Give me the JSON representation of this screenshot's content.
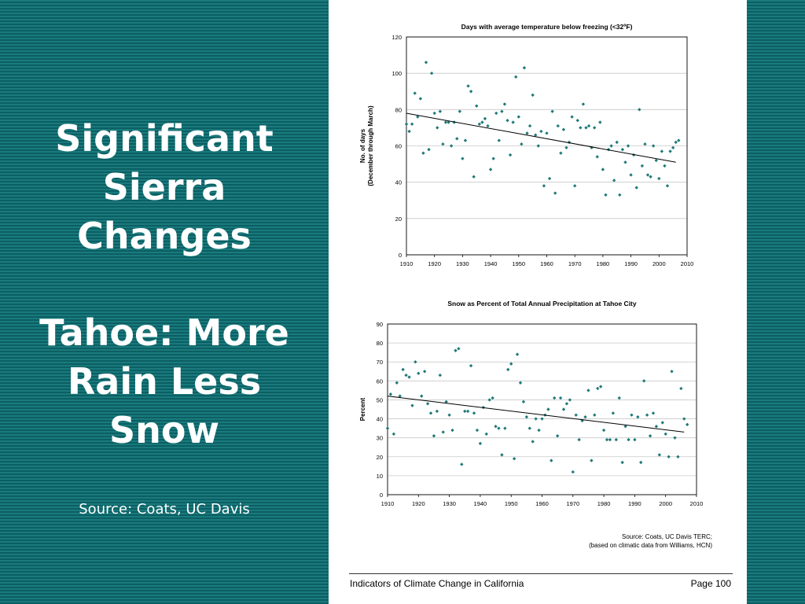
{
  "slide": {
    "title_lines": [
      "Significant",
      "Sierra",
      "Changes"
    ],
    "subtitle_lines": [
      "Tahoe: More",
      "Rain Less",
      "Snow"
    ],
    "source": "Source: Coats, UC Davis"
  },
  "document": {
    "footer_left": "Indicators of Climate Change in California",
    "footer_right": "Page 100",
    "source_note_line1": "Source: Coats, UC Davis TERC;",
    "source_note_line2": "(based on climatic data from Williams, HCN)"
  },
  "colors": {
    "background": "#0f6b6e",
    "point": "#1f7a78",
    "trend": "#000000",
    "grid": "#c8c8c8"
  },
  "chart_data": [
    {
      "type": "scatter",
      "title": "Days with average temperature below freezing (<32ºF)",
      "xlabel": "",
      "ylabel": "No. of days",
      "ylabel2": "(December through March)",
      "xlim": [
        1910,
        2010
      ],
      "ylim": [
        0,
        120
      ],
      "xticks": [
        1910,
        1920,
        1930,
        1940,
        1950,
        1960,
        1970,
        1980,
        1990,
        2000,
        2010
      ],
      "yticks": [
        0,
        20,
        40,
        60,
        80,
        100,
        120
      ],
      "grid": true,
      "trend": [
        [
          1910,
          78
        ],
        [
          2006,
          51
        ]
      ],
      "x": [
        1910,
        1911,
        1912,
        1913,
        1914,
        1915,
        1916,
        1917,
        1918,
        1919,
        1920,
        1921,
        1922,
        1923,
        1924,
        1925,
        1926,
        1927,
        1928,
        1929,
        1930,
        1931,
        1932,
        1933,
        1934,
        1935,
        1936,
        1937,
        1938,
        1939,
        1940,
        1941,
        1942,
        1943,
        1944,
        1945,
        1946,
        1947,
        1948,
        1949,
        1950,
        1951,
        1952,
        1953,
        1954,
        1955,
        1956,
        1957,
        1958,
        1959,
        1960,
        1961,
        1962,
        1963,
        1964,
        1965,
        1966,
        1967,
        1968,
        1969,
        1970,
        1971,
        1972,
        1973,
        1974,
        1975,
        1976,
        1977,
        1978,
        1979,
        1980,
        1981,
        1982,
        1983,
        1984,
        1985,
        1986,
        1987,
        1988,
        1989,
        1990,
        1991,
        1992,
        1993,
        1994,
        1995,
        1996,
        1997,
        1998,
        1999,
        2000,
        2001,
        2002,
        2003,
        2004,
        2005,
        2006,
        2007
      ],
      "y": [
        72,
        68,
        72,
        89,
        76,
        86,
        56,
        106,
        58,
        100,
        78,
        70,
        79,
        61,
        73,
        73,
        60,
        73,
        64,
        79,
        53,
        63,
        93,
        90,
        43,
        82,
        72,
        73,
        75,
        71,
        47,
        53,
        78,
        63,
        79,
        83,
        74,
        55,
        73,
        98,
        76,
        61,
        103,
        67,
        71,
        88,
        66,
        60,
        68,
        38,
        67,
        42,
        79,
        34,
        71,
        56,
        69,
        59,
        62,
        76,
        38,
        74,
        70,
        83,
        70,
        71,
        59,
        70,
        54,
        73,
        47,
        33,
        58,
        60,
        41,
        62,
        33,
        58,
        51,
        60,
        44,
        55,
        37,
        80,
        49,
        61,
        44,
        43,
        60,
        52,
        42,
        57,
        49,
        38,
        57,
        59,
        62,
        63
      ]
    },
    {
      "type": "scatter",
      "title": "Snow as Percent of Total Annual Precipitation at Tahoe City",
      "xlabel": "",
      "ylabel": "Percent",
      "xlim": [
        1910,
        2010
      ],
      "ylim": [
        0,
        90
      ],
      "xticks": [
        1910,
        1920,
        1930,
        1940,
        1950,
        1960,
        1970,
        1980,
        1990,
        2000,
        2010
      ],
      "yticks": [
        0,
        10,
        20,
        30,
        40,
        50,
        60,
        70,
        80,
        90
      ],
      "grid": true,
      "trend": [
        [
          1910,
          52
        ],
        [
          2006,
          33
        ]
      ],
      "x": [
        1910,
        1911,
        1912,
        1913,
        1914,
        1915,
        1916,
        1917,
        1918,
        1919,
        1920,
        1921,
        1922,
        1923,
        1924,
        1925,
        1926,
        1927,
        1928,
        1929,
        1930,
        1931,
        1932,
        1933,
        1934,
        1935,
        1936,
        1937,
        1938,
        1939,
        1940,
        1941,
        1942,
        1943,
        1944,
        1945,
        1946,
        1947,
        1948,
        1949,
        1950,
        1951,
        1952,
        1953,
        1954,
        1955,
        1956,
        1957,
        1958,
        1959,
        1960,
        1961,
        1962,
        1963,
        1964,
        1965,
        1966,
        1967,
        1968,
        1969,
        1970,
        1971,
        1972,
        1973,
        1974,
        1975,
        1976,
        1977,
        1978,
        1979,
        1980,
        1981,
        1982,
        1983,
        1984,
        1985,
        1986,
        1987,
        1988,
        1989,
        1990,
        1991,
        1992,
        1993,
        1994,
        1995,
        1996,
        1997,
        1998,
        1999,
        2000,
        2001,
        2002,
        2003,
        2004,
        2005,
        2006,
        2007
      ],
      "y": [
        35,
        53,
        32,
        59,
        52,
        66,
        63,
        62,
        47,
        70,
        64,
        52,
        65,
        48,
        43,
        31,
        44,
        63,
        33,
        49,
        42,
        34,
        76,
        77,
        16,
        44,
        44,
        68,
        43,
        34,
        27,
        46,
        32,
        50,
        51,
        36,
        35,
        21,
        35,
        66,
        69,
        19,
        74,
        59,
        49,
        41,
        35,
        28,
        40,
        34,
        40,
        42,
        45,
        18,
        51,
        31,
        51,
        45,
        48,
        50,
        12,
        42,
        29,
        39,
        41,
        55,
        18,
        42,
        56,
        57,
        34,
        29,
        29,
        43,
        29,
        51,
        17,
        36,
        29,
        42,
        29,
        41,
        17,
        60,
        42,
        31,
        43,
        36,
        21,
        38,
        32,
        20,
        65,
        30,
        20,
        56,
        40,
        37
      ]
    }
  ]
}
